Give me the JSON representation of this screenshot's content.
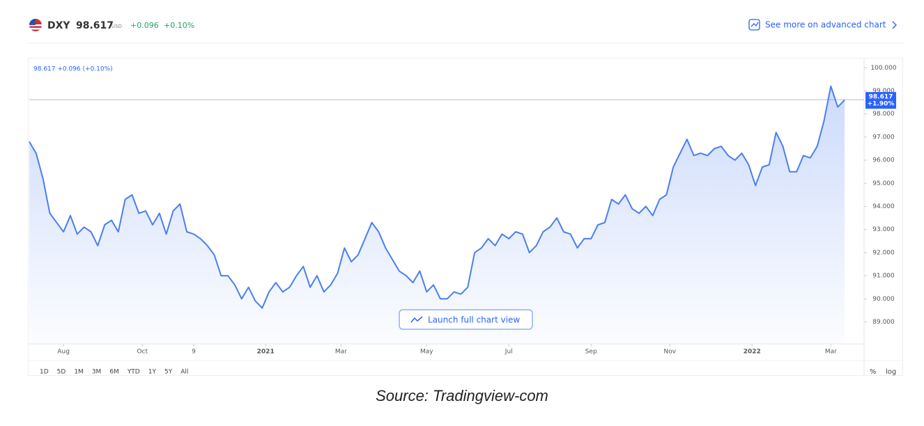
{
  "header": {
    "symbol": "DXY",
    "price": "98.617",
    "currency": "USD",
    "change": "+0.096",
    "change_pct": "+0.10%",
    "link": "See more on advanced chart"
  },
  "chart_data": {
    "type": "line",
    "color": "#4a7ef0",
    "legend": "98.617 +0.096 (+0.10%)",
    "last_value": 98.617,
    "last_change": "+1.90%",
    "values": [
      96.8,
      96.3,
      95.2,
      93.7,
      93.3,
      92.9,
      93.6,
      92.8,
      93.1,
      92.9,
      92.3,
      93.2,
      93.4,
      92.9,
      94.3,
      94.5,
      93.7,
      93.8,
      93.2,
      93.7,
      92.8,
      93.8,
      94.1,
      92.9,
      92.8,
      92.6,
      92.3,
      91.9,
      91.0,
      91.0,
      90.6,
      90.0,
      90.5,
      89.9,
      89.6,
      90.3,
      90.7,
      90.3,
      90.5,
      91.0,
      91.4,
      90.5,
      91.0,
      90.3,
      90.6,
      91.1,
      92.2,
      91.6,
      91.9,
      92.6,
      93.3,
      92.9,
      92.2,
      91.7,
      91.2,
      91.0,
      90.7,
      91.2,
      90.3,
      90.6,
      90.0,
      90.0,
      90.3,
      90.2,
      90.5,
      92.0,
      92.2,
      92.6,
      92.3,
      92.8,
      92.6,
      92.9,
      92.8,
      92.0,
      92.3,
      92.9,
      93.1,
      93.5,
      92.9,
      92.8,
      92.2,
      92.6,
      92.6,
      93.2,
      93.3,
      94.3,
      94.1,
      94.5,
      93.9,
      93.7,
      94.0,
      93.6,
      94.3,
      94.5,
      95.7,
      96.3,
      96.9,
      96.2,
      96.3,
      96.2,
      96.5,
      96.6,
      96.2,
      96.0,
      96.3,
      95.8,
      94.9,
      95.7,
      95.8,
      97.2,
      96.6,
      95.5,
      95.5,
      96.2,
      96.1,
      96.6,
      97.7,
      99.2,
      98.3,
      98.6
    ],
    "xlim": [
      0,
      119
    ],
    "xticks": [
      {
        "value": 5,
        "label": "Aug"
      },
      {
        "value": 16.5,
        "label": "Oct"
      },
      {
        "value": 24,
        "label": "9"
      },
      {
        "value": 34.5,
        "label": "2021"
      },
      {
        "value": 45.5,
        "label": "Mar"
      },
      {
        "value": 58,
        "label": "May"
      },
      {
        "value": 70,
        "label": "Jul"
      },
      {
        "value": 82,
        "label": "Sep"
      },
      {
        "value": 93.5,
        "label": "Nov"
      },
      {
        "value": 105.5,
        "label": "2022"
      },
      {
        "value": 117,
        "label": "Mar"
      }
    ],
    "ylim": [
      88.05,
      100.4
    ],
    "yticks": [
      {
        "value": 89,
        "label": "89.000"
      },
      {
        "value": 90,
        "label": "90.000"
      },
      {
        "value": 91,
        "label": "91.000"
      },
      {
        "value": 92,
        "label": "92.000"
      },
      {
        "value": 93,
        "label": "93.000"
      },
      {
        "value": 94,
        "label": "94.000"
      },
      {
        "value": 95,
        "label": "95.000"
      },
      {
        "value": 96,
        "label": "96.000"
      },
      {
        "value": 97,
        "label": "97.000"
      },
      {
        "value": 98,
        "label": "98.000"
      },
      {
        "value": 99,
        "label": "99.000"
      },
      {
        "value": 100,
        "label": "100.000"
      }
    ]
  },
  "launch_button": "Launch full chart view",
  "ranges": [
    "1D",
    "5D",
    "1M",
    "3M",
    "6M",
    "YTD",
    "1Y",
    "5Y",
    "All"
  ],
  "options": [
    "%",
    "log"
  ],
  "caption": "Source: Tradingview-com"
}
